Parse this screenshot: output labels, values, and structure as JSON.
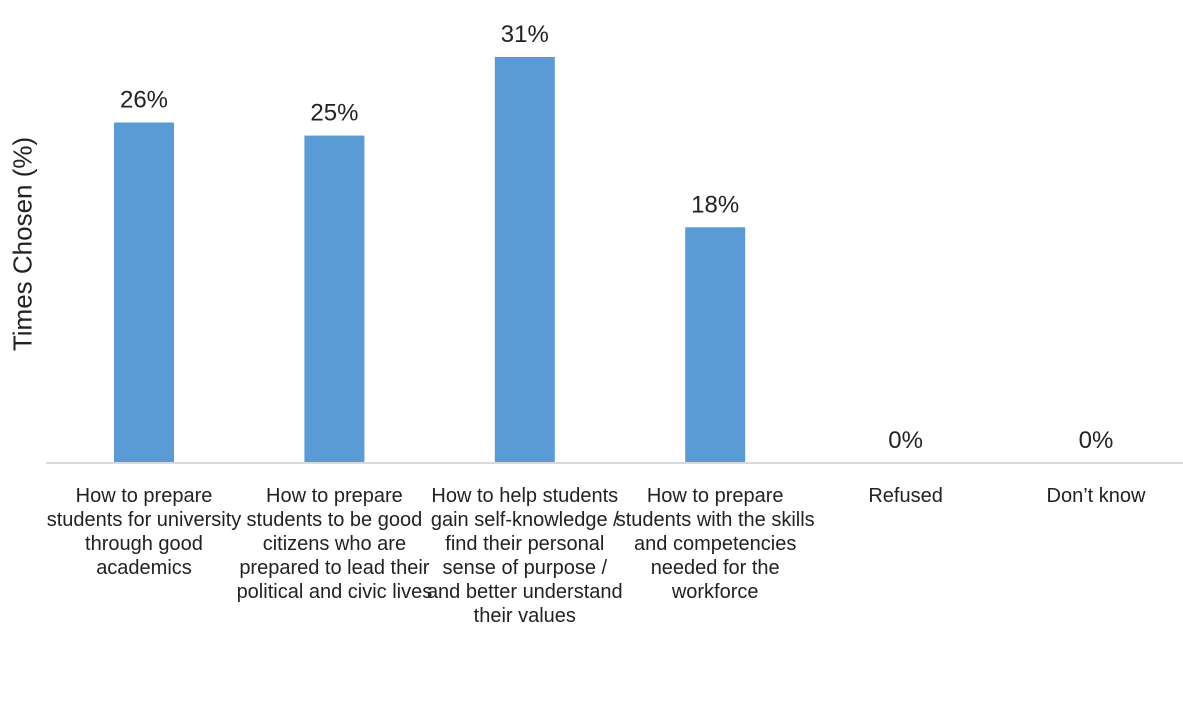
{
  "chart_data": {
    "type": "bar",
    "title": "",
    "xlabel": "",
    "ylabel": "Times Chosen (%)",
    "categories": [
      "How to prepare students for university through good academics",
      "How to prepare students to be good citizens who are prepared to lead their political and civic lives",
      "How to help students gain self-knowledge / find their personal sense of purpose / and better understand their values",
      "How to prepare students with the skills and competencies needed for the workforce",
      "Refused",
      "Don’t know"
    ],
    "values": [
      26,
      25,
      31,
      18,
      0,
      0
    ],
    "value_labels": [
      "26%",
      "25%",
      "31%",
      "18%",
      "0%",
      "0%"
    ],
    "ylim": [
      0,
      31
    ],
    "grid": false,
    "legend": "none",
    "bar_color": "#5b9bd5",
    "axis_color": "#d9d9d9"
  }
}
